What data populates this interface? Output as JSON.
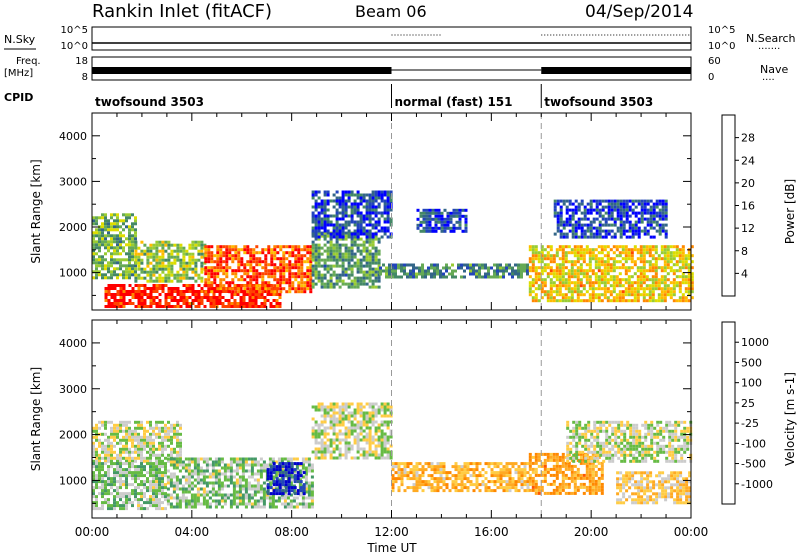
{
  "header": {
    "station": "Rankin Inlet (fitACF)",
    "beam": "Beam 06",
    "date": "04/Sep/2014"
  },
  "status_rows": {
    "nsky": {
      "label": "N.Sky",
      "ticks": [
        "10^5",
        "10^0"
      ]
    },
    "nsearch": {
      "label": "N.Search",
      "ticks": [
        "10^5",
        "10^0"
      ],
      "legend": "......."
    },
    "freq": {
      "label_top": "Freq.",
      "label_bottom": "[MHz]",
      "ticks": [
        "18",
        "8"
      ]
    },
    "nave": {
      "label": "Nave",
      "ticks": [
        "60",
        "0"
      ],
      "legend": "...."
    },
    "cpid": {
      "label": "CPID",
      "segments": [
        {
          "name": "twofsound 3503",
          "start_h": 0,
          "end_h": 12
        },
        {
          "name": "normal (fast) 151",
          "start_h": 12,
          "end_h": 18
        },
        {
          "name": "twofsound 3503",
          "start_h": 18,
          "end_h": 24
        }
      ]
    }
  },
  "chart_data": [
    {
      "type": "heatmap",
      "quantity": "Power",
      "ylabel": "Slant Range [km]",
      "yticks": [
        1000,
        2000,
        3000,
        4000
      ],
      "ylim": [
        180,
        4500
      ],
      "xlim": [
        0,
        24
      ],
      "colorbar": {
        "label": "Power [dB]",
        "tick_labels": [
          "28",
          "24",
          "20",
          "16",
          "12",
          "8",
          "4"
        ],
        "colors": [
          "#ff0000",
          "#ff4400",
          "#ff8800",
          "#ffbb00",
          "#dddd00",
          "#99cc33",
          "#66aa55",
          "#448866",
          "#336688",
          "#2244bb",
          "#0000ff"
        ]
      },
      "regions": [
        {
          "h0": 0.0,
          "h1": 1.7,
          "r0": 900,
          "r1": 2300,
          "power": 14
        },
        {
          "h0": 1.7,
          "h1": 4.5,
          "r0": 800,
          "r1": 1700,
          "power": 16
        },
        {
          "h0": 0.5,
          "h1": 7.5,
          "r0": 250,
          "r1": 750,
          "power": 29
        },
        {
          "h0": 4.5,
          "h1": 8.8,
          "r0": 600,
          "r1": 1600,
          "power": 26
        },
        {
          "h0": 8.8,
          "h1": 11.5,
          "r0": 700,
          "r1": 1900,
          "power": 12
        },
        {
          "h0": 8.8,
          "h1": 12.0,
          "r0": 1800,
          "r1": 2800,
          "power": 6
        },
        {
          "h0": 11.5,
          "h1": 17.5,
          "r0": 900,
          "r1": 1200,
          "power": 10
        },
        {
          "h0": 13.0,
          "h1": 15.0,
          "r0": 1900,
          "r1": 2400,
          "power": 6
        },
        {
          "h0": 17.5,
          "h1": 24.0,
          "r0": 400,
          "r1": 1600,
          "power": 20
        },
        {
          "h0": 18.5,
          "h1": 23.0,
          "r0": 1800,
          "r1": 2600,
          "power": 6
        }
      ]
    },
    {
      "type": "heatmap",
      "quantity": "Velocity",
      "ylabel": "Slant Range [km]",
      "xlabel": "Time UT",
      "xticks": [
        "00:00",
        "04:00",
        "08:00",
        "12:00",
        "16:00",
        "20:00",
        "00:00"
      ],
      "yticks": [
        1000,
        2000,
        3000,
        4000
      ],
      "ylim": [
        180,
        4500
      ],
      "xlim": [
        0,
        24
      ],
      "colorbar": {
        "label": "Velocity [m s-1]",
        "tick_labels": [
          "1000",
          "500",
          "100",
          "25",
          "-25",
          "-100",
          "-500",
          "-1000"
        ],
        "colors": [
          "#0000cc",
          "#2244bb",
          "#336688",
          "#449966",
          "#66bb44",
          "#cccccc",
          "#ffcc44",
          "#ffaa22",
          "#ff8800",
          "#ff5500",
          "#ff0000"
        ]
      },
      "regions": [
        {
          "h0": 0.0,
          "h1": 3.5,
          "r0": 1400,
          "r1": 2300,
          "velocity": 0
        },
        {
          "h0": 0.0,
          "h1": 3.0,
          "r0": 400,
          "r1": 1400,
          "velocity": 150
        },
        {
          "h0": 3.0,
          "h1": 8.8,
          "r0": 400,
          "r1": 1500,
          "velocity": 120
        },
        {
          "h0": 7.0,
          "h1": 8.5,
          "r0": 700,
          "r1": 1400,
          "velocity": 800
        },
        {
          "h0": 8.8,
          "h1": 12.0,
          "r0": 1500,
          "r1": 2700,
          "velocity": 0
        },
        {
          "h0": 12.0,
          "h1": 17.5,
          "r0": 800,
          "r1": 1400,
          "velocity": -300
        },
        {
          "h0": 17.5,
          "h1": 20.5,
          "r0": 700,
          "r1": 1600,
          "velocity": -400
        },
        {
          "h0": 19.0,
          "h1": 24.0,
          "r0": 1400,
          "r1": 2300,
          "velocity": 0
        },
        {
          "h0": 21.0,
          "h1": 24.0,
          "r0": 500,
          "r1": 1200,
          "velocity": -200
        }
      ]
    }
  ]
}
